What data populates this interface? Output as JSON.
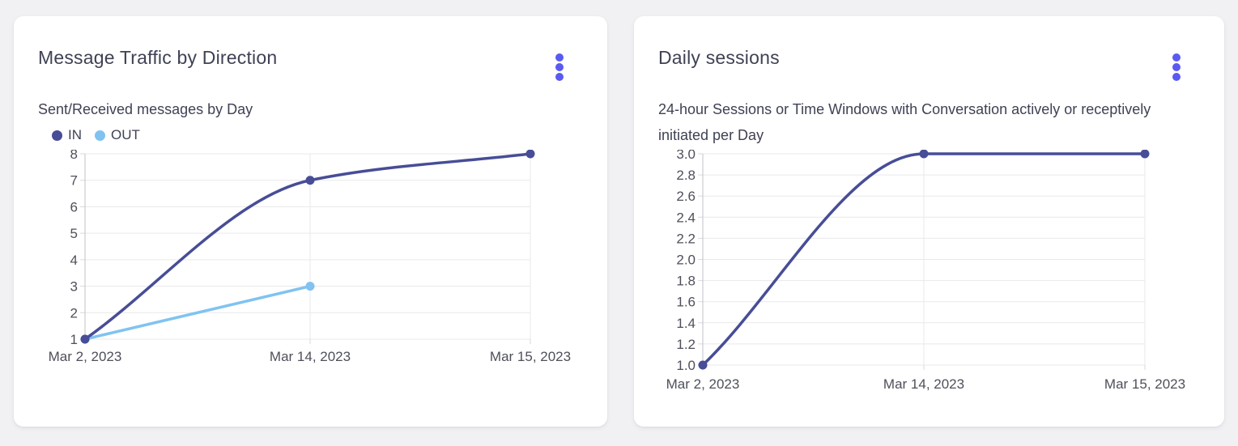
{
  "page": {
    "background": "#f1f1f4",
    "card_background": "#ffffff"
  },
  "colors": {
    "accent": "#5a5af2",
    "title_text": "#3f4254",
    "axis_text": "#4e505a",
    "gridline": "#e9e9ec",
    "axis_line": "#c2c3c8",
    "tick": "#d9dade"
  },
  "cards": [
    {
      "title": "Message Traffic by Direction",
      "subtitle": "Sent/Received messages by Day",
      "menu_icon": "kebab-menu-icon"
    },
    {
      "title": "Daily sessions",
      "subtitle": "24-hour Sessions or Time Windows with Conversation actively or receptively initiated per Day",
      "menu_icon": "kebab-menu-icon"
    }
  ],
  "chart_data": [
    {
      "type": "line",
      "title": "Message Traffic by Direction",
      "subtitle": "Sent/Received messages by Day",
      "categories": [
        "Mar 2, 2023",
        "Mar 14, 2023",
        "Mar 15, 2023"
      ],
      "series": [
        {
          "name": "IN",
          "color": "#474d96",
          "values": [
            1,
            7,
            8
          ]
        },
        {
          "name": "OUT",
          "color": "#80c3f0",
          "values": [
            1,
            3,
            null
          ]
        }
      ],
      "xlabel": "",
      "ylabel": "",
      "ylim": [
        1,
        8
      ],
      "ytick_step": 1,
      "ytick_decimals": 0,
      "grid": true,
      "legend_position": "top-left",
      "curve": "monotone"
    },
    {
      "type": "line",
      "title": "Daily sessions",
      "subtitle": "24-hour Sessions or Time Windows with Conversation actively or receptively initiated per Day",
      "categories": [
        "Mar 2, 2023",
        "Mar 14, 2023",
        "Mar 15, 2023"
      ],
      "series": [
        {
          "name": "Daily sessions",
          "color": "#474d96",
          "values": [
            1.0,
            3.0,
            3.0
          ]
        }
      ],
      "xlabel": "",
      "ylabel": "",
      "ylim": [
        1.0,
        3.0
      ],
      "ytick_step": 0.2,
      "ytick_decimals": 1,
      "grid": true,
      "legend_position": "none",
      "curve": "monotone"
    }
  ]
}
